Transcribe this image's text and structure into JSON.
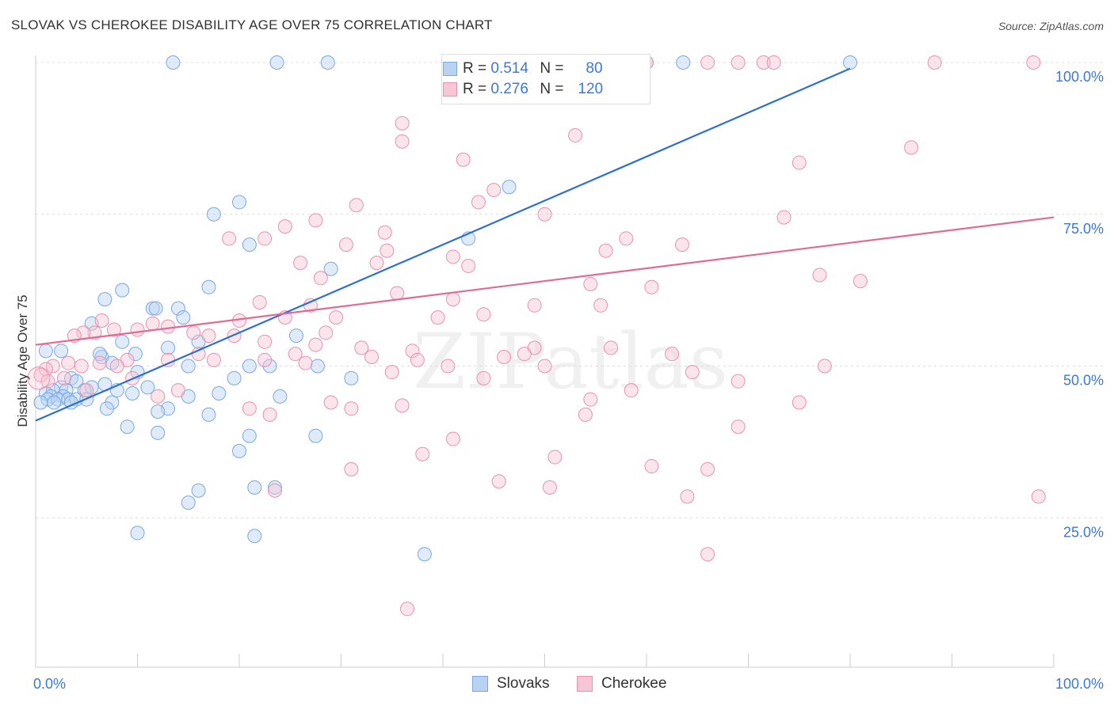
{
  "chart_data": {
    "type": "scatter",
    "title": "SLOVAK VS CHEROKEE DISABILITY AGE OVER 75 CORRELATION CHART",
    "source": "Source: ZipAtlas.com",
    "xlabel": "",
    "ylabel": "Disability Age Over 75",
    "xlim": [
      0,
      100
    ],
    "ylim": [
      0,
      105
    ],
    "x_tick_labels": [
      "0.0%",
      "100.0%"
    ],
    "y_tick_labels": [
      {
        "value": 100,
        "label": "100.0%"
      },
      {
        "value": 75,
        "label": "75.0%"
      },
      {
        "value": 50,
        "label": "50.0%"
      },
      {
        "value": 25,
        "label": "25.0%"
      }
    ],
    "grid": true,
    "watermark": "ZIPatlas",
    "legend": [
      {
        "name": "Slovaks",
        "r_label": "R = ",
        "r": "0.514",
        "n_label": "N = ",
        "n": "80",
        "color": "#7aa8e0",
        "fill": "#b9d2f2"
      },
      {
        "name": "Cherokee",
        "r_label": "R = ",
        "r": "0.276",
        "n_label": "N = ",
        "n": "120",
        "color": "#e991ad",
        "fill": "#f6c6d5"
      }
    ],
    "series": [
      {
        "name": "Slovaks",
        "color": "#7aa8e0",
        "fill": "#b9d2f2",
        "trend": {
          "x": [
            0,
            80
          ],
          "y": [
            41,
            99
          ],
          "color": "#2d6fd0"
        },
        "points": [
          [
            13.5,
            100
          ],
          [
            23.7,
            100
          ],
          [
            28.7,
            100
          ],
          [
            60,
            100
          ],
          [
            63.6,
            100
          ],
          [
            80,
            100
          ],
          [
            50.5,
            100
          ],
          [
            46.5,
            79.5
          ],
          [
            20,
            77
          ],
          [
            17.5,
            75
          ],
          [
            21,
            70
          ],
          [
            42.5,
            71
          ],
          [
            29,
            66
          ],
          [
            8.5,
            62.5
          ],
          [
            6.8,
            61
          ],
          [
            11.5,
            59.5
          ],
          [
            14,
            59.5
          ],
          [
            11.8,
            59.5
          ],
          [
            14.5,
            58
          ],
          [
            5.5,
            57
          ],
          [
            25.6,
            55
          ],
          [
            8.5,
            54
          ],
          [
            6.5,
            51.5
          ],
          [
            7.5,
            50.5
          ],
          [
            10,
            49
          ],
          [
            15,
            50
          ],
          [
            21,
            50
          ],
          [
            27.7,
            50
          ],
          [
            3.5,
            48
          ],
          [
            4,
            47.5
          ],
          [
            6.8,
            47
          ],
          [
            5.5,
            46.5
          ],
          [
            2.5,
            46.5
          ],
          [
            1.7,
            46
          ],
          [
            3,
            46
          ],
          [
            4.8,
            46
          ],
          [
            1,
            45.5
          ],
          [
            1.5,
            45
          ],
          [
            2.7,
            45
          ],
          [
            8,
            46
          ],
          [
            11,
            46.5
          ],
          [
            1.2,
            44.5
          ],
          [
            2.2,
            44.5
          ],
          [
            3.2,
            44.5
          ],
          [
            4,
            44.5
          ],
          [
            5,
            44.5
          ],
          [
            0.5,
            44
          ],
          [
            1.8,
            44
          ],
          [
            3.5,
            44
          ],
          [
            7.5,
            44
          ],
          [
            9.5,
            45.5
          ],
          [
            18,
            45.5
          ],
          [
            15,
            45
          ],
          [
            24,
            45
          ],
          [
            13,
            43
          ],
          [
            7,
            43
          ],
          [
            12,
            42.5
          ],
          [
            17,
            42
          ],
          [
            9,
            40
          ],
          [
            12,
            39
          ],
          [
            21,
            38.5
          ],
          [
            27.5,
            38.5
          ],
          [
            16,
            29.5
          ],
          [
            21.5,
            30
          ],
          [
            23.5,
            30
          ],
          [
            15,
            27.5
          ],
          [
            10,
            22.5
          ],
          [
            21.5,
            22
          ],
          [
            38.2,
            19
          ],
          [
            1,
            52.5
          ],
          [
            2.5,
            52.5
          ],
          [
            6.3,
            52
          ],
          [
            17,
            63
          ],
          [
            23,
            50
          ],
          [
            16,
            54
          ],
          [
            19.5,
            48
          ],
          [
            20,
            36
          ],
          [
            13,
            53
          ],
          [
            9.8,
            52
          ],
          [
            31,
            48
          ]
        ]
      },
      {
        "name": "Cherokee",
        "color": "#e991ad",
        "fill": "#f6c6d5",
        "trend": {
          "x": [
            0,
            100
          ],
          "y": [
            53.5,
            74.5
          ],
          "color": "#e26b94"
        },
        "points": [
          [
            60,
            100
          ],
          [
            66,
            100
          ],
          [
            69,
            100
          ],
          [
            71.5,
            100
          ],
          [
            72.5,
            100
          ],
          [
            88.3,
            100
          ],
          [
            98,
            100
          ],
          [
            43.3,
            96
          ],
          [
            36,
            90
          ],
          [
            53,
            88
          ],
          [
            36,
            87
          ],
          [
            42,
            84
          ],
          [
            75,
            83.5
          ],
          [
            86,
            86
          ],
          [
            45,
            79
          ],
          [
            43.5,
            77
          ],
          [
            31.5,
            76.5
          ],
          [
            50,
            75
          ],
          [
            73.5,
            74.5
          ],
          [
            27.5,
            74
          ],
          [
            34.3,
            72
          ],
          [
            24.5,
            73
          ],
          [
            22.5,
            71
          ],
          [
            19,
            71
          ],
          [
            30.5,
            70
          ],
          [
            34.5,
            69
          ],
          [
            58,
            71
          ],
          [
            41,
            68
          ],
          [
            63.5,
            70
          ],
          [
            56,
            69
          ],
          [
            28,
            64.5
          ],
          [
            26,
            67
          ],
          [
            33.5,
            67
          ],
          [
            42.5,
            66.5
          ],
          [
            77,
            65
          ],
          [
            81,
            64
          ],
          [
            54.5,
            63.5
          ],
          [
            60.5,
            63
          ],
          [
            35.5,
            62
          ],
          [
            41,
            61
          ],
          [
            22,
            60.5
          ],
          [
            27,
            60
          ],
          [
            49,
            60
          ],
          [
            55.5,
            60
          ],
          [
            20,
            57.5
          ],
          [
            24.5,
            58
          ],
          [
            29.5,
            58
          ],
          [
            44,
            58.5
          ],
          [
            11.5,
            57
          ],
          [
            10,
            56
          ],
          [
            7.7,
            56
          ],
          [
            5.8,
            55.5
          ],
          [
            4.7,
            55.5
          ],
          [
            3.8,
            55
          ],
          [
            13,
            56.5
          ],
          [
            15.5,
            55.5
          ],
          [
            17,
            55
          ],
          [
            19.5,
            55
          ],
          [
            22.5,
            54
          ],
          [
            27.5,
            53.5
          ],
          [
            32,
            53
          ],
          [
            37,
            52.5
          ],
          [
            49,
            53
          ],
          [
            33,
            51.5
          ],
          [
            25.5,
            52
          ],
          [
            22.5,
            51
          ],
          [
            17.5,
            51
          ],
          [
            13,
            51
          ],
          [
            9,
            51
          ],
          [
            6.3,
            50.5
          ],
          [
            4.5,
            50
          ],
          [
            1.7,
            50
          ],
          [
            1,
            49.5
          ],
          [
            0.5,
            48.5
          ],
          [
            2.8,
            48
          ],
          [
            1.2,
            47.5
          ],
          [
            3.2,
            50.5
          ],
          [
            8,
            50
          ],
          [
            9.5,
            48
          ],
          [
            12,
            45
          ],
          [
            14,
            46
          ],
          [
            29,
            44
          ],
          [
            31,
            43
          ],
          [
            21,
            43
          ],
          [
            23,
            42
          ],
          [
            37.5,
            51
          ],
          [
            40.5,
            50
          ],
          [
            44,
            48
          ],
          [
            50,
            50
          ],
          [
            58.5,
            46
          ],
          [
            69,
            47.5
          ],
          [
            77.5,
            50
          ],
          [
            75,
            44
          ],
          [
            54,
            42
          ],
          [
            69,
            40
          ],
          [
            41,
            38
          ],
          [
            51,
            35
          ],
          [
            60.5,
            33.5
          ],
          [
            66,
            33
          ],
          [
            45.5,
            31
          ],
          [
            50.5,
            30
          ],
          [
            64,
            28.5
          ],
          [
            98.5,
            28.5
          ],
          [
            23.5,
            29.5
          ],
          [
            31,
            33
          ],
          [
            66,
            19
          ],
          [
            36.5,
            10
          ],
          [
            38,
            35.5
          ],
          [
            54.5,
            44.5
          ],
          [
            62.5,
            52
          ],
          [
            46,
            51.5
          ],
          [
            6.5,
            57.5
          ],
          [
            16,
            52
          ],
          [
            28.5,
            55.5
          ],
          [
            39.5,
            58
          ],
          [
            48,
            52
          ],
          [
            56.5,
            53
          ],
          [
            64.5,
            49
          ],
          [
            5,
            46
          ],
          [
            35,
            49
          ],
          [
            26.5,
            50.5
          ],
          [
            36,
            43.5
          ]
        ]
      }
    ]
  }
}
